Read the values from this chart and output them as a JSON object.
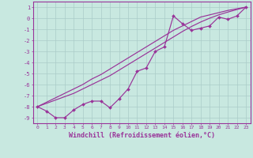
{
  "x_data": [
    0,
    1,
    2,
    3,
    4,
    5,
    6,
    7,
    8,
    9,
    10,
    11,
    12,
    13,
    14,
    15,
    16,
    17,
    18,
    19,
    20,
    21,
    22,
    23
  ],
  "y_zigzag": [
    -8.0,
    -8.4,
    -9.0,
    -9.0,
    -8.3,
    -7.8,
    -7.5,
    -7.5,
    -8.1,
    -7.3,
    -6.4,
    -4.8,
    -4.5,
    -3.0,
    -2.6,
    0.2,
    -0.5,
    -1.1,
    -0.9,
    -0.7,
    0.1,
    -0.1,
    0.2,
    1.0
  ],
  "y_line1": [
    -8.0,
    -7.6,
    -7.2,
    -6.8,
    -6.4,
    -6.0,
    -5.5,
    -5.1,
    -4.6,
    -4.1,
    -3.6,
    -3.1,
    -2.6,
    -2.1,
    -1.6,
    -1.1,
    -0.7,
    -0.3,
    0.1,
    0.3,
    0.5,
    0.7,
    0.85,
    1.0
  ],
  "y_line2": [
    -8.0,
    -7.7,
    -7.4,
    -7.1,
    -6.8,
    -6.4,
    -6.0,
    -5.6,
    -5.2,
    -4.7,
    -4.2,
    -3.7,
    -3.2,
    -2.7,
    -2.2,
    -1.7,
    -1.2,
    -0.75,
    -0.35,
    0.0,
    0.3,
    0.55,
    0.78,
    1.0
  ],
  "line_color": "#993399",
  "bg_color": "#c8e8e0",
  "grid_color": "#aaccc8",
  "xlabel": "Windchill (Refroidissement éolien,°C)",
  "ylim": [
    -9.5,
    1.5
  ],
  "xlim": [
    -0.5,
    23.5
  ],
  "yticks": [
    -9,
    -8,
    -7,
    -6,
    -5,
    -4,
    -3,
    -2,
    -1,
    0,
    1
  ],
  "xticks": [
    0,
    1,
    2,
    3,
    4,
    5,
    6,
    7,
    8,
    9,
    10,
    11,
    12,
    13,
    14,
    15,
    16,
    17,
    18,
    19,
    20,
    21,
    22,
    23
  ]
}
